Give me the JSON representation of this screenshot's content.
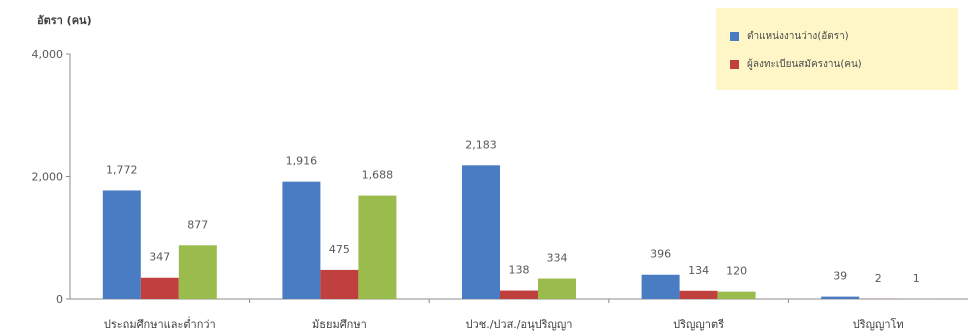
{
  "chart_data": {
    "type": "bar",
    "title": "",
    "xlabel": "",
    "ylabel": "อัตรา (คน)",
    "ylim": [
      0,
      4000
    ],
    "yticks": [
      0,
      2000,
      4000
    ],
    "ytick_labels": [
      "0",
      "2,000",
      "4,000"
    ],
    "grid": false,
    "legend_position": "top-right",
    "categories": [
      "ประถมศึกษาและต่ำกว่า",
      "มัธยมศึกษา",
      "ปวช./ปวส./อนุปริญญา",
      "ปริญญาตรี",
      "ปริญญาโท"
    ],
    "series": [
      {
        "name": "ตำแหน่งงานว่าง(อัตรา)",
        "color": "#4a7cc4",
        "values": [
          1772,
          1916,
          2183,
          396,
          39
        ],
        "labels": [
          "1,772",
          "1,916",
          "2,183",
          "396",
          "39"
        ]
      },
      {
        "name": "ผู้ลงทะเบียนสมัครงาน(คน)",
        "color": "#c0403e",
        "values": [
          347,
          475,
          138,
          134,
          2
        ],
        "labels": [
          "347",
          "475",
          "138",
          "134",
          "2"
        ]
      },
      {
        "name": "",
        "color": "#99bc4d",
        "values": [
          877,
          1688,
          334,
          120,
          1
        ],
        "labels": [
          "877",
          "1,688",
          "334",
          "120",
          "1"
        ]
      }
    ]
  }
}
